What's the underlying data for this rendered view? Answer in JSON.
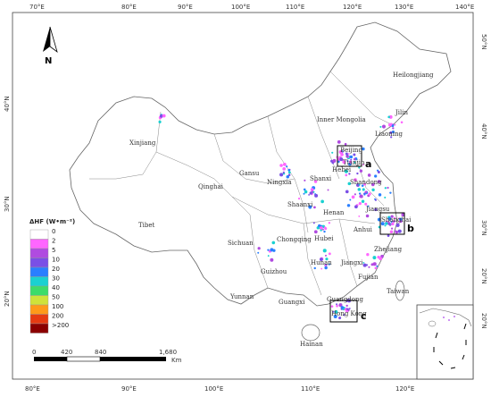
{
  "top_ticks": [
    "70°E",
    "80°E",
    "90°E",
    "100°E",
    "110°E",
    "120°E",
    "130°E",
    "140°E"
  ],
  "bottom_ticks": [
    "80°E",
    "90°E",
    "100°E",
    "110°E",
    "120°E"
  ],
  "left_ticks": [
    "40°N",
    "30°N",
    "20°N"
  ],
  "right_ticks": [
    "50°N",
    "40°N",
    "30°N",
    "20°N"
  ],
  "inset_tick": "20°N",
  "north_label": "N",
  "provinces": [
    "Heilongjiang",
    "Jilin",
    "Liaoning",
    "Inner Mongolia",
    "Xinjiang",
    "Beijing",
    "Tianjin",
    "Hebei",
    "Shandong",
    "Gansu",
    "Ningxia",
    "Shanxi",
    "Qinghai",
    "Shaanxi",
    "Henan",
    "Jiangsu",
    "Shanghai",
    "Anhui",
    "Tibet",
    "Sichuan",
    "Chongqing",
    "Hubei",
    "Zhejiang",
    "Hunan",
    "Jiangxi",
    "Guizhou",
    "Fujian",
    "Yunnan",
    "Guangxi",
    "Guangdong",
    "Taiwan",
    "Hong Kong",
    "Hainan"
  ],
  "panel_labels": [
    "a",
    "b",
    "c"
  ],
  "legend": {
    "title": "ΔHF (W•m⁻²)",
    "labels": [
      "0",
      "2",
      "5",
      "10",
      "20",
      "30",
      "40",
      "50",
      "100",
      "200",
      ">200"
    ],
    "colors": [
      "#ffffff",
      "#ff66ff",
      "#b04be0",
      "#7a4fe6",
      "#2a7fff",
      "#1ad1d1",
      "#3ddc6a",
      "#cfe33a",
      "#ff9a1a",
      "#e63b12",
      "#8b0000"
    ]
  },
  "scalebar": {
    "ticks": [
      "0",
      "420",
      "840",
      "1,680"
    ],
    "unit": "Km"
  }
}
